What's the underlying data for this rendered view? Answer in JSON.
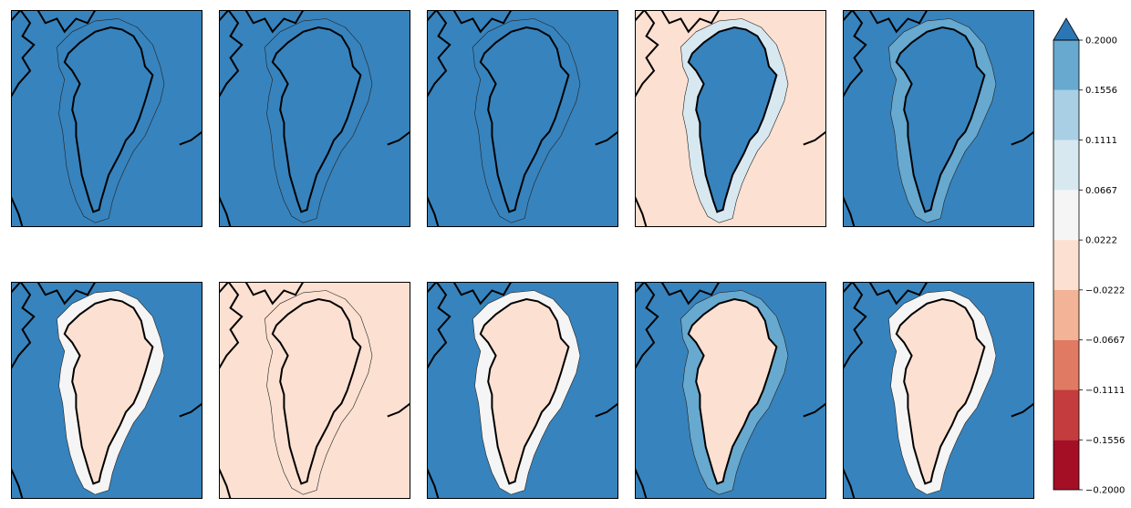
{
  "chart_data": {
    "type": "heatmap",
    "layout": {
      "rows": 2,
      "cols": 5
    },
    "region": "Greenland",
    "colorbar": {
      "levels": [
        -0.2,
        -0.1556,
        -0.1111,
        -0.0667,
        -0.0222,
        0.0222,
        0.0667,
        0.1111,
        0.1556,
        0.2
      ],
      "tick_labels": [
        "−0.2000",
        "−0.1556",
        "−0.1111",
        "−0.0667",
        "−0.0222",
        "0.0222",
        "0.0667",
        "0.1111",
        "0.1556",
        "0.2000"
      ],
      "colors": [
        "#a50f26",
        "#c43c3e",
        "#e17a62",
        "#f3b396",
        "#fce0d1",
        "#f5f5f5",
        "#d7e8f1",
        "#a9cfe5",
        "#67a9cf",
        "#3783bd"
      ],
      "extend": "max",
      "extend_color": "#2c76b5"
    },
    "panels": [
      {
        "row": 0,
        "col": 0,
        "background": "#3783bd",
        "land": "#3783bd",
        "shelf": "#3783bd"
      },
      {
        "row": 0,
        "col": 1,
        "background": "#3783bd",
        "land": "#3783bd",
        "shelf": "#3783bd"
      },
      {
        "row": 0,
        "col": 2,
        "background": "#3783bd",
        "land": "#3783bd",
        "shelf": "#3783bd"
      },
      {
        "row": 0,
        "col": 3,
        "background": "#fce0d1",
        "land": "#3783bd",
        "shelf": "#d7e8f1"
      },
      {
        "row": 0,
        "col": 4,
        "background": "#3783bd",
        "land": "#3783bd",
        "shelf": "#67a9cf"
      },
      {
        "row": 1,
        "col": 0,
        "background": "#3783bd",
        "land": "#fce0d1",
        "shelf": "#f5f5f5"
      },
      {
        "row": 1,
        "col": 1,
        "background": "#fce0d1",
        "land": "#fce0d1",
        "shelf": "#fce0d1"
      },
      {
        "row": 1,
        "col": 2,
        "background": "#3783bd",
        "land": "#fce0d1",
        "shelf": "#f5f5f5"
      },
      {
        "row": 1,
        "col": 3,
        "background": "#3783bd",
        "land": "#fce0d1",
        "shelf": "#67a9cf"
      },
      {
        "row": 1,
        "col": 4,
        "background": "#3783bd",
        "land": "#fce0d1",
        "shelf": "#f5f5f5"
      }
    ]
  }
}
